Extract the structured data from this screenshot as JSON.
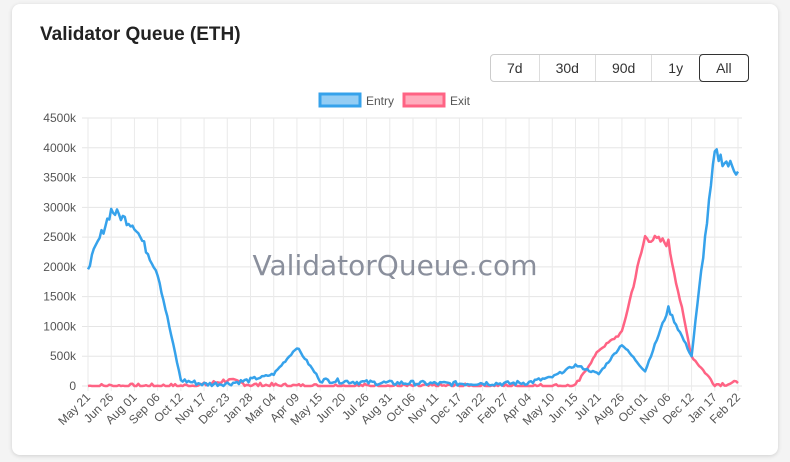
{
  "title": "Validator Queue (ETH)",
  "ranges": [
    {
      "label": "7d"
    },
    {
      "label": "30d"
    },
    {
      "label": "90d"
    },
    {
      "label": "1y"
    },
    {
      "label": "All",
      "active": true
    }
  ],
  "watermark": "ValidatorQueue.com",
  "colors": {
    "entry": "#36a2eb",
    "exit": "#ff6384"
  },
  "chart_data": {
    "type": "line",
    "title": "",
    "categories": [
      "May 21",
      "Jun 26",
      "Aug 01",
      "Sep 06",
      "Oct 12",
      "Nov 17",
      "Dec 23",
      "Jan 28",
      "Mar 04",
      "Apr 09",
      "May 15",
      "Jun 20",
      "Jul 26",
      "Aug 31",
      "Oct 06",
      "Nov 11",
      "Dec 17",
      "Jan 22",
      "Feb 27",
      "Apr 04",
      "May 10",
      "Jun 15",
      "Jul 21",
      "Aug 26",
      "Oct 01",
      "Nov 06",
      "Dec 12",
      "Jan 17",
      "Feb 22"
    ],
    "yticks": [
      "0",
      "500k",
      "1000k",
      "1500k",
      "2000k",
      "2500k",
      "3000k",
      "3500k",
      "4000k",
      "4500k"
    ],
    "ylim": [
      0,
      4500
    ],
    "yunit": "k ETH",
    "grid": true,
    "legend": "top",
    "series": [
      {
        "name": "Entry",
        "values": [
          2000,
          2950,
          2700,
          1900,
          100,
          30,
          40,
          100,
          200,
          650,
          100,
          80,
          60,
          50,
          50,
          40,
          40,
          50,
          40,
          60,
          150,
          350,
          200,
          700,
          250,
          1300,
          500,
          3900,
          3600
        ]
      },
      {
        "name": "Exit",
        "values": [
          0,
          0,
          0,
          0,
          0,
          20,
          100,
          20,
          10,
          0,
          0,
          0,
          0,
          0,
          0,
          0,
          0,
          0,
          0,
          0,
          0,
          0,
          600,
          900,
          2500,
          2400,
          500,
          30,
          50
        ]
      }
    ]
  }
}
